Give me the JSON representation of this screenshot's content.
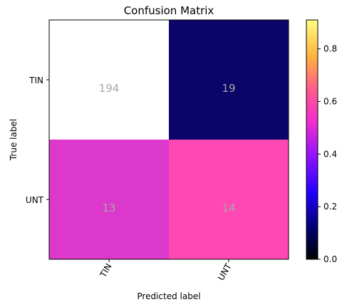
{
  "chart_data": {
    "type": "heatmap",
    "title": "Confusion Matrix",
    "xlabel": "Predicted label",
    "ylabel": "True label",
    "row_labels": [
      "TIN",
      "UNT"
    ],
    "col_labels": [
      "TIN",
      "UNT"
    ],
    "values": [
      [
        194,
        19
      ],
      [
        13,
        14
      ]
    ],
    "cell_colors": [
      [
        "#ffffff",
        "#0b0569"
      ],
      [
        "#dc38cc",
        "#ff48b4"
      ]
    ],
    "cell_text_color": "#a8a8a8",
    "colorbar": {
      "ticks": [
        "0.0",
        "0.2",
        "0.4",
        "0.6",
        "0.8"
      ],
      "tick_values": [
        0.0,
        0.2,
        0.4,
        0.6,
        0.8
      ],
      "range": [
        0,
        0.91
      ],
      "colormap": "gnuplot2"
    }
  }
}
